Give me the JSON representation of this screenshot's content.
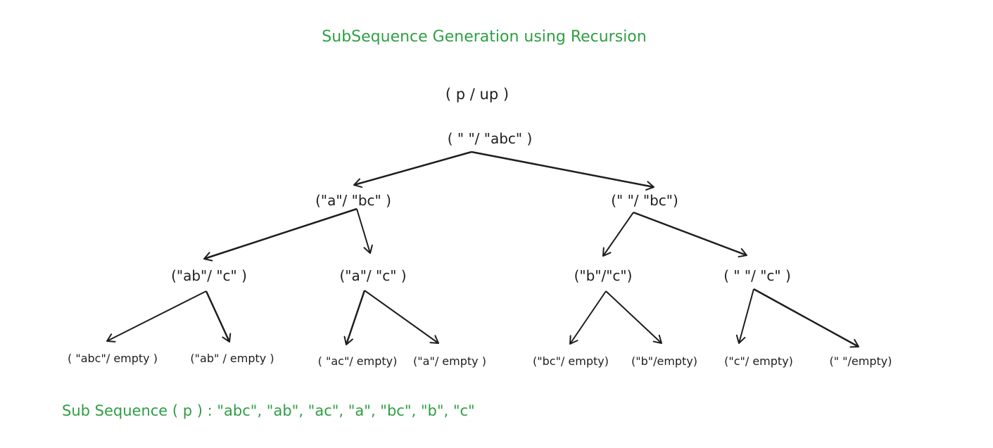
{
  "title": "SubSequence Generation using Recursion",
  "header": "( p / up )",
  "nodes": {
    "root": "( \" \"/ \"abc\" )",
    "a_bc": "(\"a\"/ \"bc\" )",
    "blank_bc": "(\" \"/ \"bc\")",
    "ab_c": "(\"ab\"/ \"c\" )",
    "a_c": "(\"a\"/ \"c\" )",
    "b_c": "(\"b\"/\"c\")",
    "blank_c": "( \" \"/ \"c\" )",
    "abc_empty": "( \"abc\"/ empty )",
    "ab_empty": "(\"ab\" / empty )",
    "ac_empty": "( \"ac\"/ empty)",
    "a_empty": "(\"a\"/ empty )",
    "bc_empty": "(\"bc\"/ empty)",
    "b_empty": "(\"b\"/empty)",
    "c_empty": "(\"c\"/ empty)",
    "blank_empty": "(\" \"/empty)"
  },
  "summary": "Sub Sequence ( p ) : \"abc\", \"ab\", \"ac\", \"a\", \"bc\", \"b\", \"c\"",
  "colors": {
    "accent": "#2f9e44",
    "ink": "#1e1e1e"
  }
}
